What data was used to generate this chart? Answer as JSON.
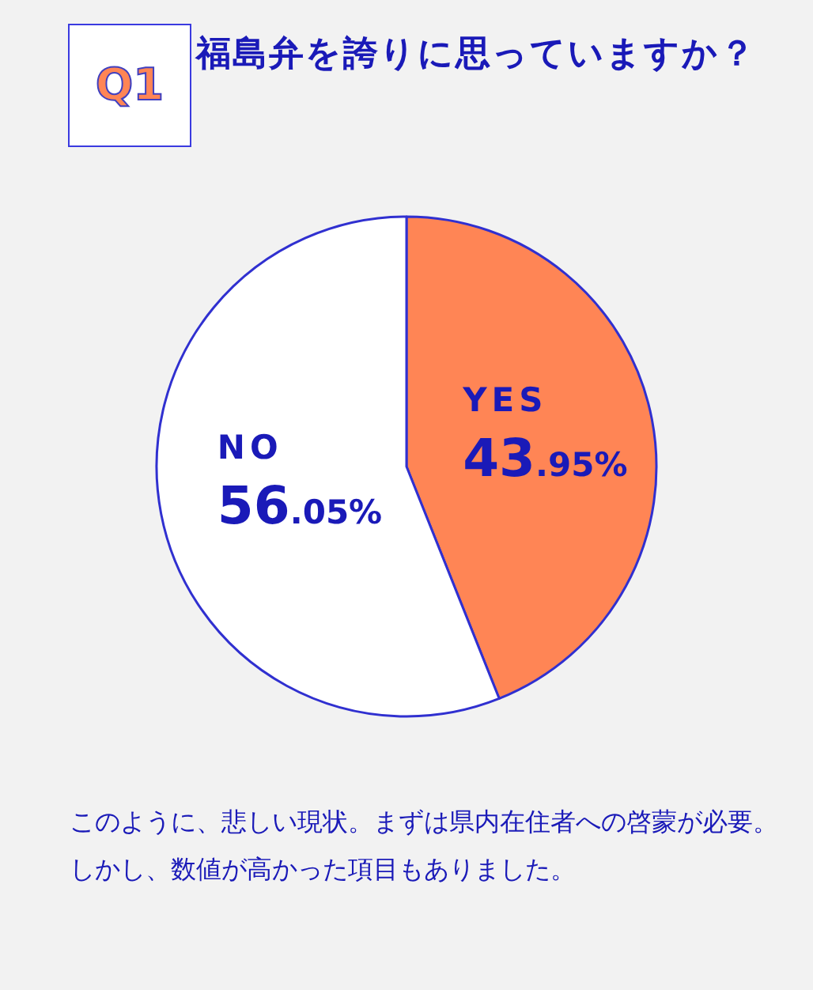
{
  "chart_data": {
    "type": "pie",
    "title": "福島弁を誇りに思っていますか？",
    "categories": [
      "YES",
      "NO"
    ],
    "values": [
      43.95,
      56.05
    ],
    "value_labels": [
      "43.95%",
      "56.05%"
    ],
    "colors": [
      "#ff8555",
      "#ffffff"
    ],
    "annotations": [
      "Q1",
      "このように、悲しい現状。まずは県内在住者への啓蒙が必要。しかし、数値が高かった項目もありました。"
    ]
  }
}
